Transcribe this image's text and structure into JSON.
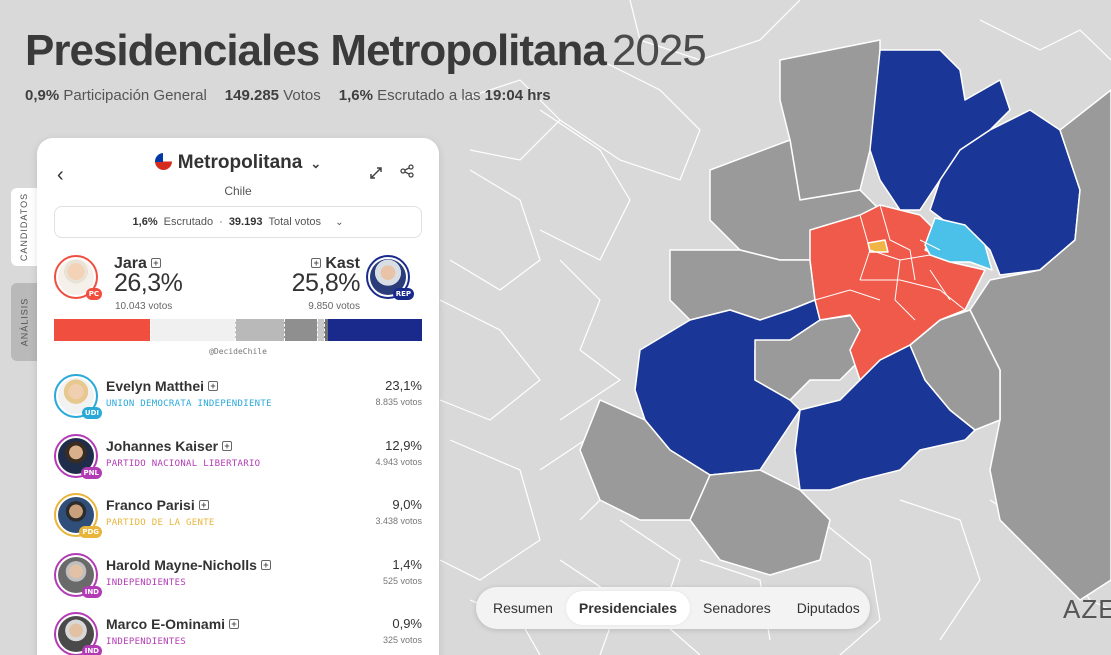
{
  "header": {
    "title": "Presidenciales Metropolitana",
    "year": "2025",
    "participation_value": "0,9%",
    "participation_label": "Participación General",
    "votes_value": "149.285",
    "votes_label": "Votos",
    "counted_value": "1,6%",
    "counted_label": "Escrutado a las",
    "counted_time": "19:04 hrs"
  },
  "side_tabs": {
    "candidates": "CANDIDATOS",
    "analysis": "ANÁLISIS"
  },
  "panel": {
    "region": "Metropolitana",
    "country": "Chile",
    "summary": {
      "counted_value": "1,6%",
      "counted_label": "Escrutado",
      "separator": "·",
      "total_value": "39.193",
      "total_label": "Total votos"
    },
    "leaders": [
      {
        "name": "Jara",
        "pct": "26,3%",
        "votes": "10.043 votos",
        "badge": "PC",
        "color": "#f04e3e"
      },
      {
        "name": "Kast",
        "pct": "25,8%",
        "votes": "9.850 votos",
        "badge": "REP",
        "color": "#1a2a8c"
      }
    ],
    "bar": [
      {
        "share": 26.3,
        "color": "#f04e3e"
      },
      {
        "share": 23.1,
        "color": "#f0f0f0"
      },
      {
        "share": 12.9,
        "color": "#b9b9b9"
      },
      {
        "share": 9.0,
        "color": "#8f8f8f"
      },
      {
        "share": 1.4,
        "color": "#c9c9c9"
      },
      {
        "share": 0.9,
        "color": "#6f6f6f"
      },
      {
        "share": 25.8,
        "color": "#1a2a8c"
      }
    ],
    "credit": "@DecideChile",
    "candidates": [
      {
        "name": "Evelyn Matthei",
        "party": "UNION DEMOCRATA INDEPENDIENTE",
        "pct": "23,1%",
        "votes": "8.835 votos",
        "badge": "UDI",
        "color": "#29a9d8"
      },
      {
        "name": "Johannes Kaiser",
        "party": "PARTIDO NACIONAL LIBERTARIO",
        "pct": "12,9%",
        "votes": "4.943 votos",
        "badge": "PNL",
        "color": "#b23bb5"
      },
      {
        "name": "Franco Parisi",
        "party": "PARTIDO DE LA GENTE",
        "pct": "9,0%",
        "votes": "3.438 votos",
        "badge": "PDG",
        "color": "#e8b43a"
      },
      {
        "name": "Harold Mayne-Nicholls",
        "party": "INDEPENDIENTES",
        "pct": "1,4%",
        "votes": "525 votos",
        "badge": "IND",
        "color": "#b23bb5"
      },
      {
        "name": "Marco E-Ominami",
        "party": "INDEPENDIENTES",
        "pct": "0,9%",
        "votes": "325 votos",
        "badge": "IND",
        "color": "#b23bb5"
      }
    ]
  },
  "nav": {
    "items": [
      "Resumen",
      "Presidenciales",
      "Senadores",
      "Diputados"
    ],
    "active": "Presidenciales"
  },
  "brand": "AZE",
  "map_colors": {
    "base": "#d9d9da",
    "region_grey": "#9a9a9a",
    "kast_blue": "#1a3696",
    "jara_red": "#f05a4a",
    "matthei_cyan": "#4bc0e8",
    "parisi_yellow": "#f0b545"
  }
}
